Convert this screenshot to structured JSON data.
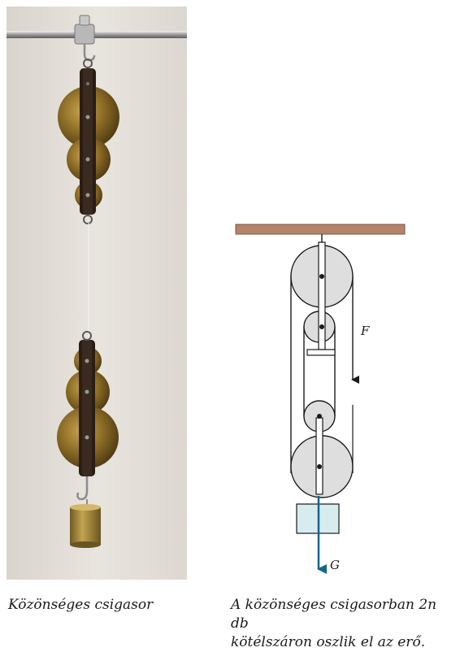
{
  "captions": {
    "left": "Közönséges csigasor",
    "right_line1": "A közönséges csigasorban 2n db",
    "right_line2": "kötélszáron oszlik el az erő."
  },
  "diagram": {
    "force_label": "F",
    "weight_label": "G"
  },
  "colors": {
    "ceiling": "#b6836a",
    "pulley": "#dedede",
    "rope": "#1a1a1a",
    "weight_box": "#d6ecee",
    "weight_arrow": "#16648f",
    "brass": "#8a6a25",
    "photo_bg": "#e3dfd8"
  }
}
